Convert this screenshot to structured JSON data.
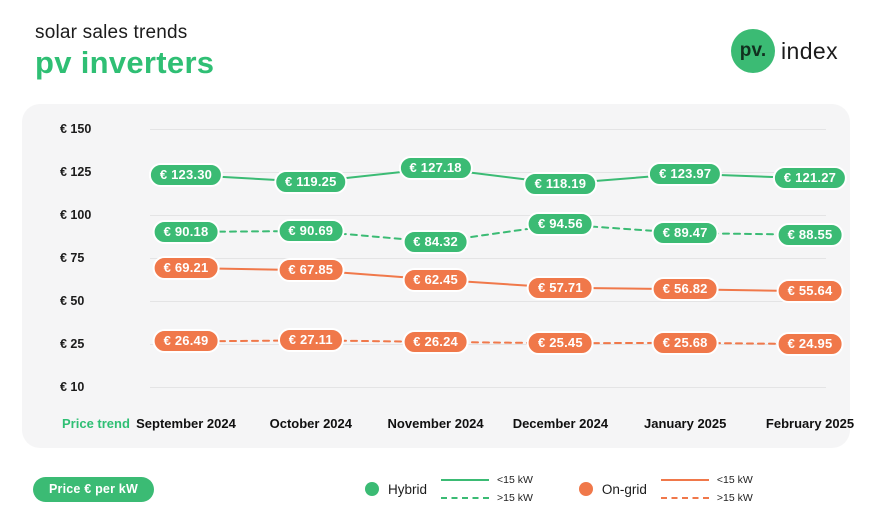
{
  "header": {
    "subtitle": "solar sales trends",
    "title": "pv inverters",
    "logo": {
      "circle_text": "pv.",
      "suffix": "index"
    }
  },
  "colors": {
    "brand_green": "#3bbb74",
    "title_green": "#2fbf74",
    "orange": "#f0784a",
    "panel_background": "#f5f5f6",
    "gridline": "#e4e4e5",
    "text_dark": "#1c1c1c"
  },
  "chart_data": {
    "type": "line",
    "title": "solar sales trends — pv inverters",
    "categories": [
      "September 2024",
      "October 2024",
      "November 2024",
      "December 2024",
      "January 2025",
      "February 2025"
    ],
    "corner_label": "Price trend",
    "unit_label": "Price € per kW",
    "currency_prefix": "€",
    "y_ticks": [
      {
        "label": "€ 150",
        "value": 150
      },
      {
        "label": "€ 125",
        "value": 125
      },
      {
        "label": "€ 100",
        "value": 100
      },
      {
        "label": "€ 75",
        "value": 75
      },
      {
        "label": "€ 50",
        "value": 50
      },
      {
        "label": "€ 25",
        "value": 25
      },
      {
        "label": "€ 10",
        "value": 10
      }
    ],
    "ylim": [
      10,
      150
    ],
    "grid": true,
    "legend_position": "bottom",
    "series": [
      {
        "name": "Hybrid <15 kW",
        "group": "Hybrid",
        "style": "solid",
        "color": "#3bbb74",
        "values": [
          123.3,
          119.25,
          127.18,
          118.19,
          123.97,
          121.27
        ],
        "labels": [
          "€ 123.30",
          "€ 119.25",
          "€ 127.18",
          "€ 118.19",
          "€ 123.97",
          "€ 121.27"
        ]
      },
      {
        "name": "Hybrid >15 kW",
        "group": "Hybrid",
        "style": "dashed",
        "color": "#3bbb74",
        "values": [
          90.18,
          90.69,
          84.32,
          94.56,
          89.47,
          88.55
        ],
        "labels": [
          "€ 90.18",
          "€ 90.69",
          "€ 84.32",
          "€ 94.56",
          "€ 89.47",
          "€ 88.55"
        ]
      },
      {
        "name": "On-grid <15 kW",
        "group": "On-grid",
        "style": "solid",
        "color": "#f0784a",
        "values": [
          69.21,
          67.85,
          62.45,
          57.71,
          56.82,
          55.64
        ],
        "labels": [
          "€ 69.21",
          "€ 67.85",
          "€ 62.45",
          "€ 57.71",
          "€ 56.82",
          "€ 55.64"
        ]
      },
      {
        "name": "On-grid >15 kW",
        "group": "On-grid",
        "style": "dashed",
        "color": "#f0784a",
        "values": [
          26.49,
          27.11,
          26.24,
          25.45,
          25.68,
          24.95
        ],
        "labels": [
          "€ 26.49",
          "€ 27.11",
          "€ 26.24",
          "€ 25.45",
          "€ 25.68",
          "€ 24.95"
        ]
      }
    ]
  },
  "legend": {
    "groups": [
      {
        "name": "Hybrid",
        "color": "#3bbb74",
        "entries": [
          {
            "style": "solid",
            "label": "<15 kW"
          },
          {
            "style": "dashed",
            "label": ">15 kW"
          }
        ]
      },
      {
        "name": "On-grid",
        "color": "#f0784a",
        "entries": [
          {
            "style": "solid",
            "label": "<15 kW"
          },
          {
            "style": "dashed",
            "label": ">15 kW"
          }
        ]
      }
    ]
  },
  "footer": {
    "unit_badge": "Price € per kW"
  }
}
